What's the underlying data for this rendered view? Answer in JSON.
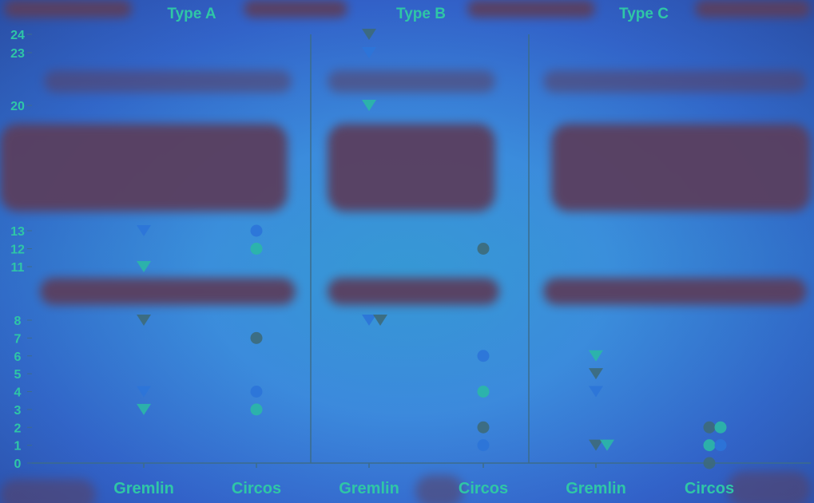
{
  "chart_data": {
    "type": "scatter",
    "facets": [
      "Type A",
      "Type B",
      "Type C"
    ],
    "categories": [
      "Gremlin",
      "Circos"
    ],
    "y_ticks": [
      0,
      1,
      2,
      3,
      4,
      5,
      6,
      7,
      8,
      11,
      12,
      13,
      20,
      23,
      24
    ],
    "panels": [
      {
        "name": "Type A",
        "Gremlin": [
          3,
          4,
          8,
          11,
          13
        ],
        "Circos": [
          3,
          4,
          7,
          12,
          13
        ]
      },
      {
        "name": "Type B",
        "Gremlin": [
          8,
          8,
          20,
          23,
          24
        ],
        "Circos": [
          1,
          2,
          4,
          6,
          12
        ]
      },
      {
        "name": "Type C",
        "Gremlin": [
          1,
          1,
          4,
          5,
          6
        ],
        "Circos": [
          0,
          1,
          1,
          2,
          2
        ]
      }
    ],
    "colors": {
      "marker_teal": "#2bb7a6",
      "marker_blue": "#2c74d8",
      "marker_dark": "#3d6a7a",
      "label": "#2fc6a6",
      "divider": "#3c6c8a"
    }
  }
}
